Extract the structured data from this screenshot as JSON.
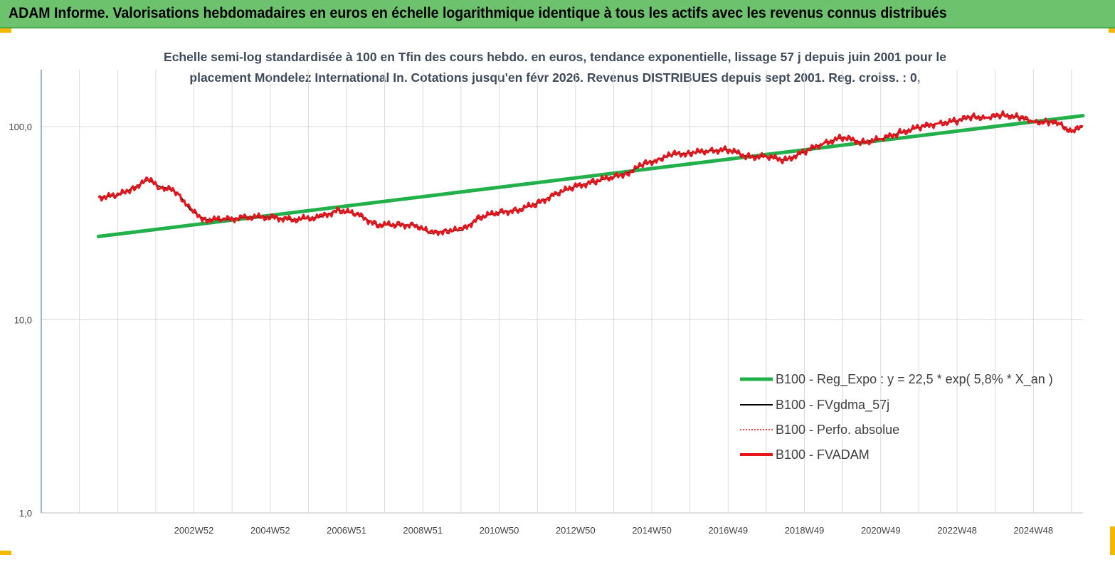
{
  "header": {
    "banner": "ADAM Informe. Valorisations hebdomadaires en euros en échelle logarithmique identique à tous les actifs avec les revenus connus distribués"
  },
  "chart_data": {
    "type": "line",
    "title_line1": "Echelle semi-log standardisée à 100 en Tfin des cours hebdo. en euros, tendance exponentielle, lissage 57 j depuis juin 2001 pour le",
    "title_line2": "placement Mondelez International In. Cotations jusqu'en févr 2026. Revenus DISTRIBUES depuis sept 2001. Reg. croiss. : 0,",
    "y_scale": "log",
    "ylim": [
      1,
      200
    ],
    "y_ticks": [
      "100,0",
      "10,0",
      "1,0"
    ],
    "x_range": [
      1999.0,
      2026.3
    ],
    "x_ticks": [
      "2002W52",
      "2004W52",
      "2006W51",
      "2008W51",
      "2010W50",
      "2012W50",
      "2014W50",
      "2016W49",
      "2018W49",
      "2020W49",
      "2022W48",
      "2024W48"
    ],
    "x_tick_years": [
      2003.0,
      2005.0,
      2007.0,
      2009.0,
      2011.0,
      2013.0,
      2015.0,
      2017.0,
      2019.0,
      2021.0,
      2023.0,
      2025.0
    ],
    "grid": true,
    "legend_position": "bottom-right",
    "series": [
      {
        "name": "B100 - Reg_Expo : y = 22,5 *  exp( 5,8% *  X_an )",
        "color": "#22b04b",
        "style": "thick-solid",
        "x": [
          2000.5,
          2026.3
        ],
        "y": [
          27.0,
          114.0
        ]
      },
      {
        "name": "B100 - FVgdma_57j",
        "color": "#000000",
        "style": "solid"
      },
      {
        "name": "B100 - Perfo. absolue",
        "color": "#ff0000",
        "style": "dotted"
      },
      {
        "name": "B100 - FVADAM",
        "color": "#e8141b",
        "style": "thick-solid",
        "x": [
          2000.5,
          2001.0,
          2001.4,
          2001.8,
          2002.1,
          2002.3,
          2002.6,
          2002.9,
          2003.3,
          2003.8,
          2004.4,
          2005.0,
          2005.6,
          2006.3,
          2006.8,
          2007.3,
          2007.8,
          2008.3,
          2008.8,
          2009.2,
          2009.6,
          2010.0,
          2010.5,
          2011.0,
          2011.5,
          2012.0,
          2012.5,
          2013.0,
          2013.5,
          2014.0,
          2014.4,
          2014.8,
          2015.2,
          2015.6,
          2016.0,
          2016.5,
          2017.0,
          2017.5,
          2018.0,
          2018.5,
          2019.0,
          2019.5,
          2020.0,
          2020.5,
          2021.0,
          2021.5,
          2022.0,
          2022.5,
          2023.0,
          2023.4,
          2023.8,
          2024.2,
          2024.6,
          2025.0,
          2025.4,
          2025.7,
          2026.0,
          2026.3
        ],
        "y": [
          43,
          44,
          48,
          53,
          49,
          48,
          45,
          37,
          33,
          33,
          34,
          34,
          33,
          34,
          37,
          35,
          31,
          31,
          31,
          28,
          29,
          29,
          34,
          36,
          37,
          40,
          45,
          49,
          52,
          55,
          58,
          64,
          68,
          72,
          73,
          75,
          76,
          70,
          70,
          67,
          74,
          82,
          88,
          83,
          86,
          93,
          99,
          104,
          107,
          113,
          111,
          115,
          112,
          106,
          106,
          103,
          94,
          100
        ]
      }
    ]
  }
}
